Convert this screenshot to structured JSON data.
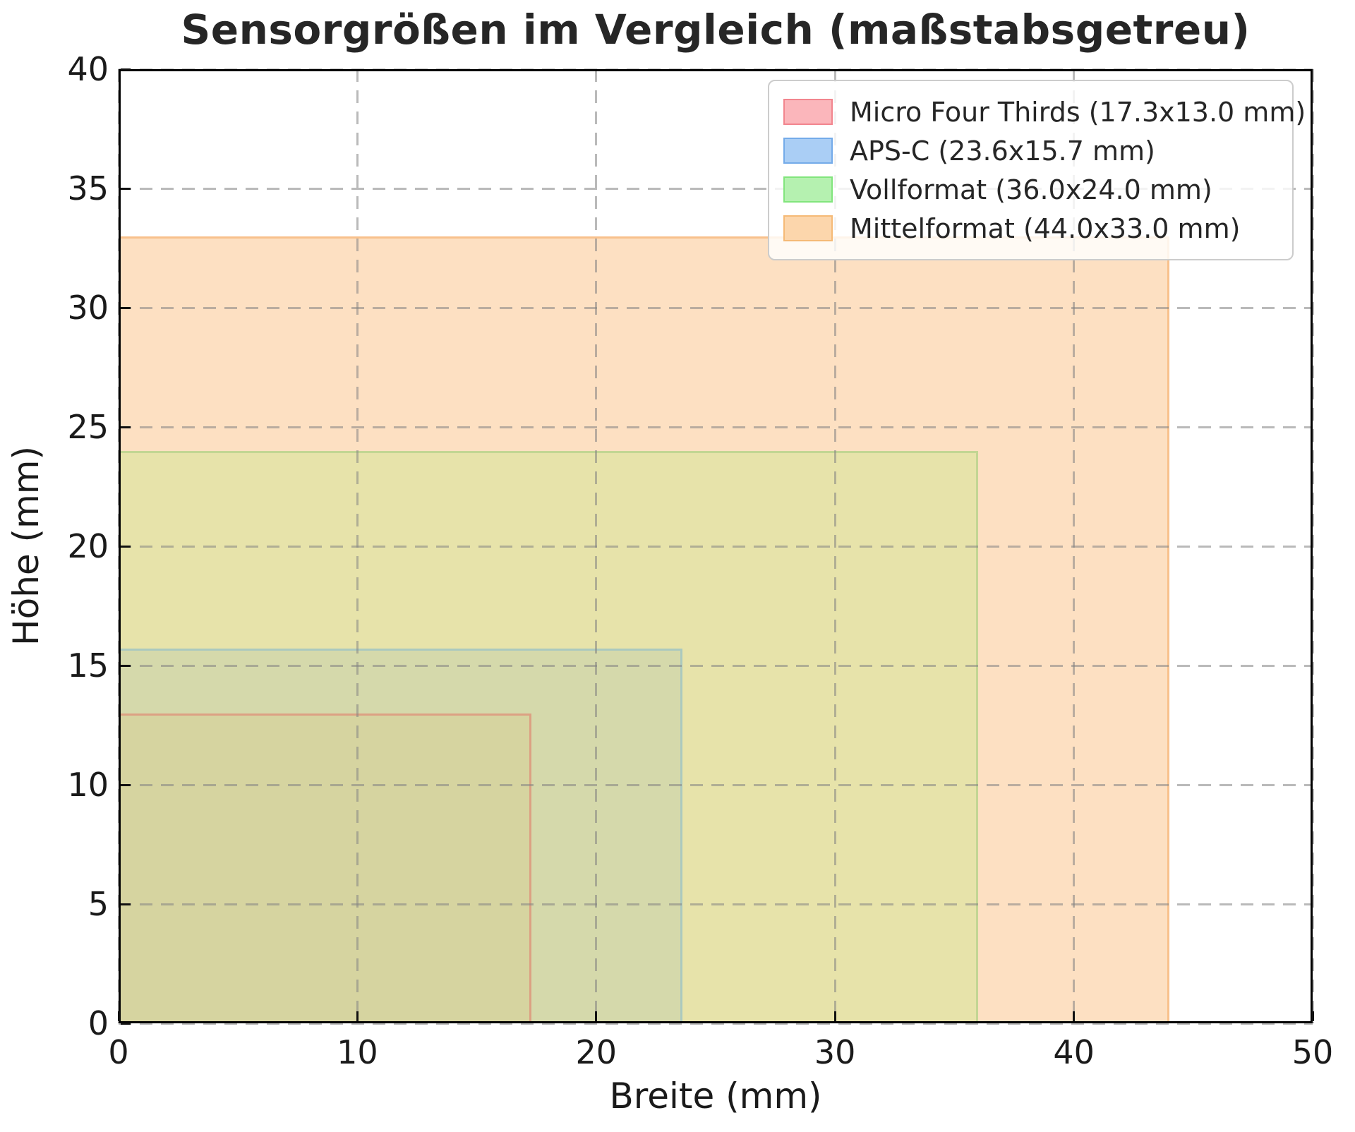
{
  "title": "Sensorgrößen im Vergleich (maßstabsgetreu)",
  "axes": {
    "xlabel": "Breite (mm)",
    "ylabel": "Höhe (mm)"
  },
  "legend": {
    "position": "upper right",
    "items": [
      {
        "label": "Micro Four Thirds (17.3x13.0 mm)",
        "swatch_fill": "#fbb6bb",
        "swatch_edge": "#f2858e"
      },
      {
        "label": "APS-C (23.6x15.7 mm)",
        "swatch_fill": "#aacef5",
        "swatch_edge": "#74abe9"
      },
      {
        "label": "Vollformat (36.0x24.0 mm)",
        "swatch_fill": "#b5f1b0",
        "swatch_edge": "#82e57d"
      },
      {
        "label": "Mittelformat (44.0x33.0 mm)",
        "swatch_fill": "#fcd6ac",
        "swatch_edge": "#f5ba77"
      }
    ]
  },
  "chart_data": {
    "type": "area",
    "title": "Sensorgrößen im Vergleich (maßstabsgetreu)",
    "xlabel": "Breite (mm)",
    "ylabel": "Höhe (mm)",
    "xlim": [
      0,
      50
    ],
    "ylim": [
      0,
      40
    ],
    "x_ticks": [
      0,
      10,
      20,
      30,
      40,
      50
    ],
    "y_ticks": [
      0,
      5,
      10,
      15,
      20,
      25,
      30,
      35,
      40
    ],
    "grid": true,
    "grid_style": "dashed",
    "legend_position": "upper right",
    "series": [
      {
        "name": "Micro Four Thirds",
        "label": "Micro Four Thirds (17.3x13.0 mm)",
        "width_mm": 17.3,
        "height_mm": 13.0,
        "fill_composite": "#d6d4a0",
        "edge_composite": "#dca183"
      },
      {
        "name": "APS-C",
        "label": "APS-C (23.6x15.7 mm)",
        "width_mm": 23.6,
        "height_mm": 15.7,
        "fill_composite": "#d5d9ab",
        "edge_composite": "#abc9bf"
      },
      {
        "name": "Vollformat",
        "label": "Vollformat (36.0x24.0 mm)",
        "width_mm": 36.0,
        "height_mm": 24.0,
        "fill_composite": "#e7e3aa",
        "edge_composite": "#c3d693"
      },
      {
        "name": "Mittelformat",
        "label": "Mittelformat (44.0x33.0 mm)",
        "width_mm": 44.0,
        "height_mm": 33.0,
        "fill_composite": "#fde0c2",
        "edge_composite": "#f8c18c"
      }
    ]
  }
}
